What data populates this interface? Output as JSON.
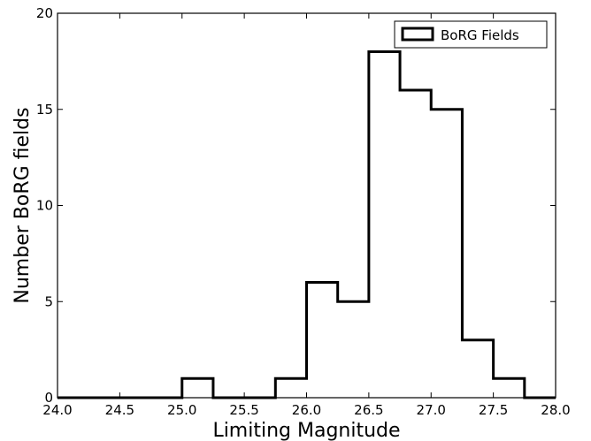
{
  "chart_data": {
    "type": "histogram",
    "xlabel": "Limiting Magnitude",
    "ylabel": "Number BoRG fields",
    "xlim": [
      24.0,
      28.0
    ],
    "ylim": [
      0,
      20
    ],
    "xticks": [
      "24.0",
      "24.5",
      "25.0",
      "25.5",
      "26.0",
      "26.5",
      "27.0",
      "27.5",
      "28.0"
    ],
    "yticks": [
      "0",
      "5",
      "10",
      "15",
      "20"
    ],
    "legend": {
      "position": "top-right",
      "entries": [
        "BoRG Fields"
      ]
    },
    "series": [
      {
        "name": "BoRG Fields",
        "bin_edges": [
          24.0,
          24.25,
          24.5,
          24.75,
          25.0,
          25.25,
          25.5,
          25.75,
          26.0,
          26.25,
          26.5,
          26.75,
          27.0,
          27.25,
          27.5,
          27.75,
          28.0
        ],
        "counts": [
          0,
          0,
          0,
          0,
          1,
          0,
          0,
          1,
          6,
          5,
          18,
          16,
          15,
          3,
          1,
          0
        ]
      }
    ],
    "grid": false
  }
}
